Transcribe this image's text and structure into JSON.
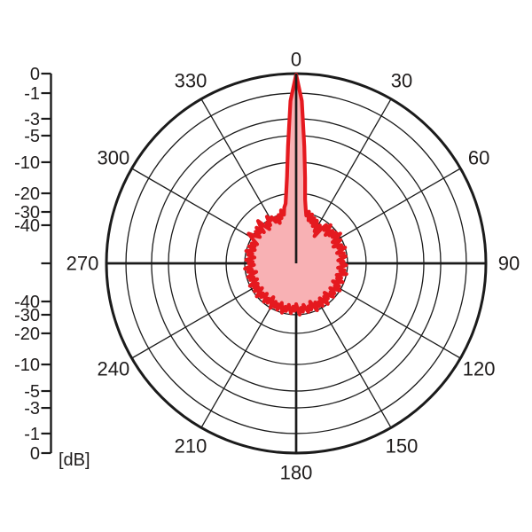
{
  "figure": {
    "description": "antenna polar radiation pattern diagram",
    "background": "#ffffff"
  },
  "colors": {
    "pattern_stroke": "#e5191f",
    "pattern_fill": "#f8b1b4",
    "grid": "#1b1b1b",
    "text": "#1f1c1c"
  },
  "chart_data": {
    "type": "polar",
    "subtype": "radiation-pattern",
    "title": "",
    "legend": null,
    "grid": true,
    "angle_unit": "deg",
    "angle_tick_step_deg": 30,
    "angle_tick_labels": [
      "0",
      "30",
      "60",
      "90",
      "120",
      "150",
      "180",
      "210",
      "240",
      "270",
      "300",
      "330"
    ],
    "angle_ticks_deg": [
      0,
      30,
      60,
      90,
      120,
      150,
      180,
      210,
      240,
      270,
      300,
      330
    ],
    "radial_axis": {
      "unit_label": "[dB]",
      "tick_db": [
        0,
        -1,
        -3,
        -5,
        -10,
        -20,
        -30,
        -40
      ],
      "tick_labels_top_to_center": [
        "0",
        "-1",
        "-3",
        "-5",
        "-10",
        "-20",
        "-30",
        "-40"
      ],
      "tick_labels_center_to_bottom": [
        "-40",
        "-30",
        "-20",
        "-10",
        "-5",
        "-3",
        "-1",
        "0"
      ],
      "ring_radius_fraction": [
        1.0,
        0.897,
        0.762,
        0.673,
        0.533,
        0.369,
        0.271,
        0.201
      ],
      "min_radius_fraction": 0.12
    },
    "series": [
      {
        "name": "radiation-pattern",
        "main_lobe_direction_deg": 0,
        "main_lobe_level_db": 0,
        "approx_sidelobe_floor_db": -34,
        "angle_start_deg": 0,
        "angle_step_deg": 2,
        "values_db": [
          -0.05,
          -1.6,
          -7,
          -15,
          -23,
          -28,
          -32,
          -29,
          -35,
          -30,
          -36,
          -32,
          -38,
          -33,
          -36,
          -41,
          -35,
          -44,
          -37,
          -32,
          -36,
          -30,
          -34,
          -38,
          -32,
          -36,
          -31,
          -35,
          -29,
          -33,
          -37,
          -31,
          -34,
          -38,
          -32,
          -35,
          -30,
          -34,
          -37,
          -32,
          -35,
          -31,
          -34,
          -37,
          -33,
          -35,
          -31,
          -34,
          -37,
          -32,
          -35,
          -30,
          -34,
          -37,
          -33,
          -36,
          -31,
          -34,
          -38,
          -32,
          -35,
          -30,
          -34,
          -37,
          -32,
          -35,
          -31,
          -34,
          -38,
          -33,
          -36,
          -30,
          -34,
          -37,
          -31,
          -35,
          -32,
          -36,
          -30,
          -34,
          -38,
          -32,
          -35,
          -31,
          -34,
          -37,
          -32,
          -35,
          -30,
          -34,
          -38,
          -33,
          -36,
          -31,
          -34,
          -37,
          -32,
          -35,
          -30,
          -34,
          -37,
          -31,
          -35,
          -32,
          -36,
          -30,
          -34,
          -38,
          -32,
          -35,
          -31,
          -34,
          -37,
          -32,
          -35,
          -30,
          -34,
          -37,
          -31,
          -35,
          -32,
          -36,
          -30,
          -34,
          -37,
          -32,
          -35,
          -31,
          -34,
          -38,
          -32,
          -35,
          -30,
          -34,
          -37,
          -33,
          -36,
          -31,
          -34,
          -37,
          -32,
          -35,
          -30,
          -34,
          -36,
          -31,
          -35,
          -32,
          -36,
          -33,
          -30,
          -27.5,
          -32,
          -35,
          -30,
          -33,
          -29,
          -35,
          -30,
          -27,
          -32,
          -36,
          -31,
          -34,
          -28,
          -31,
          -29.5,
          -34,
          -31,
          -36,
          -30,
          -33,
          -28,
          -31,
          -27,
          -25,
          -19.5,
          -14.5,
          -7,
          -1.6
        ]
      }
    ]
  }
}
